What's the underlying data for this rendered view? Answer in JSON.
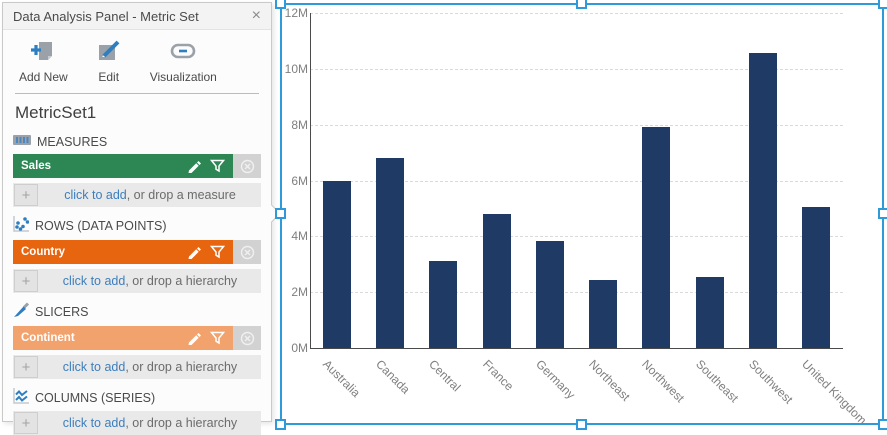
{
  "panel": {
    "title": "Data Analysis Panel - Metric Set",
    "toolbar": [
      {
        "label": "Add New",
        "icon": "add-new-icon"
      },
      {
        "label": "Edit",
        "icon": "edit-icon"
      },
      {
        "label": "Visualization",
        "icon": "visualization-icon"
      }
    ],
    "metric_set_name": "MetricSet1",
    "sections": {
      "measures": {
        "label": "MEASURES",
        "pill": {
          "name": "Sales",
          "color": "#2d8754"
        },
        "add_link": "click to add",
        "add_suffix": ", or drop a measure"
      },
      "rows": {
        "label": "ROWS (DATA POINTS)",
        "pill": {
          "name": "Country",
          "color": "#e8650f"
        },
        "add_link": "click to add",
        "add_suffix": ", or drop a hierarchy"
      },
      "slicers": {
        "label": "SLICERS",
        "pill": {
          "name": "Continent",
          "color": "#f2a36d"
        },
        "add_link": "click to add",
        "add_suffix": ", or drop a hierarchy"
      },
      "columns": {
        "label": "COLUMNS (SERIES)",
        "pill": null,
        "add_link": "click to add",
        "add_suffix": ", or drop a hierarchy"
      }
    }
  },
  "icons": {
    "close_glyph": "×",
    "plus_glyph": "+"
  },
  "colors": {
    "selection_blue": "#2e9ad9",
    "bar_navy": "#1f3a64",
    "link_blue": "#3d7ebd",
    "measure_green": "#2d8754",
    "row_orange": "#e8650f",
    "slicer_orange": "#f2a36d"
  },
  "chart_data": {
    "type": "bar",
    "categories": [
      "Australia",
      "Canada",
      "Central",
      "France",
      "Germany",
      "Northeast",
      "Northwest",
      "Southeast",
      "Southwest",
      "United Kingdom"
    ],
    "values": [
      6.0,
      6.8,
      3.1,
      4.8,
      3.85,
      2.45,
      7.9,
      2.55,
      10.55,
      5.05
    ],
    "value_unit": "M",
    "title": "",
    "xlabel": "",
    "ylabel": "",
    "ylim": [
      0,
      12
    ],
    "y_ticks": [
      "0M",
      "2M",
      "4M",
      "6M",
      "8M",
      "10M",
      "12M"
    ],
    "grid": "horizontal-dashed",
    "legend": "none",
    "bar_color": "#1f3a64"
  }
}
